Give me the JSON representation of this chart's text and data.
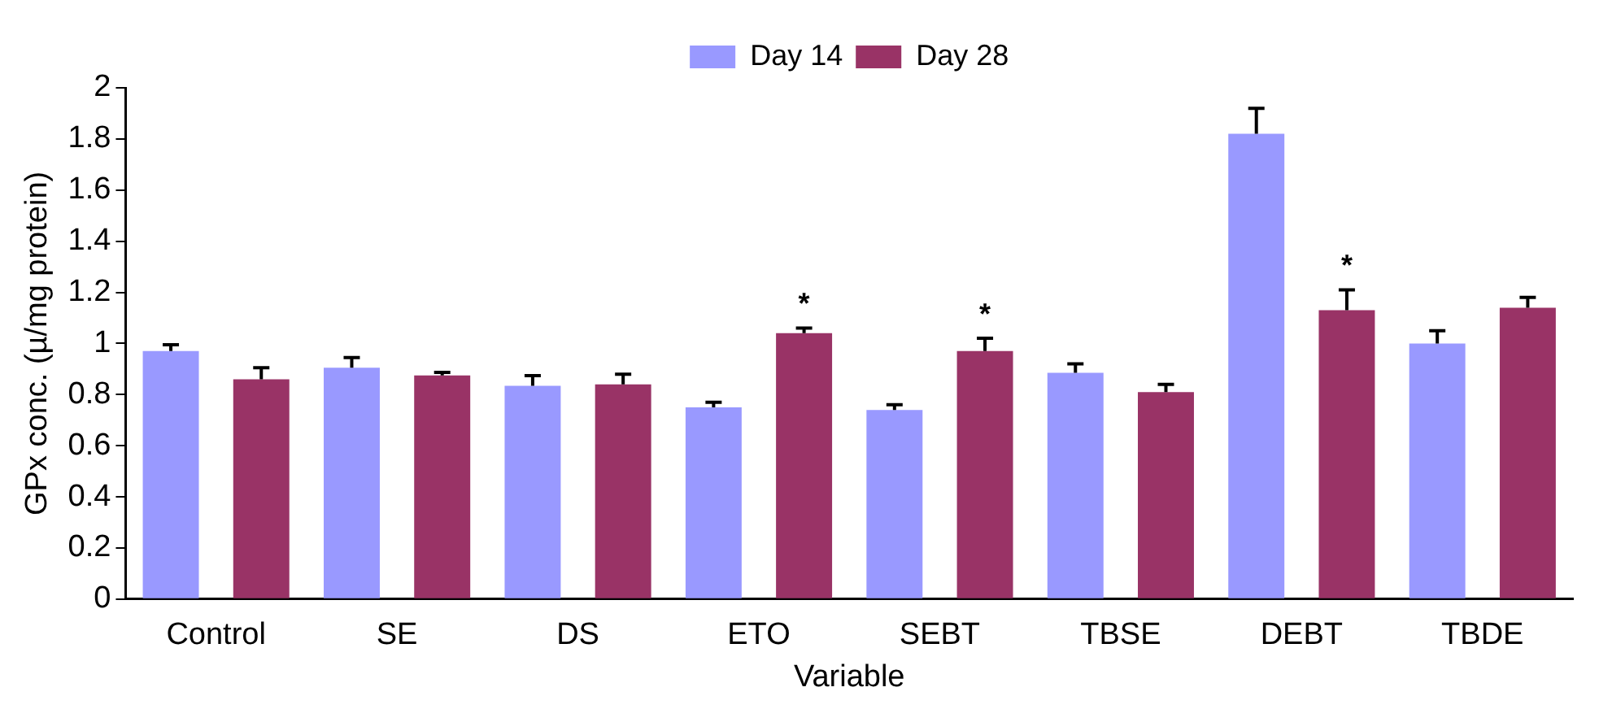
{
  "chart_data": {
    "type": "bar",
    "xlabel": "Variable",
    "ylabel": "GPx conc. (µ/mg protein)",
    "categories": [
      "Control",
      "SE",
      "DS",
      "ETO",
      "SEBT",
      "TBSE",
      "DEBT",
      "TBDE"
    ],
    "series": [
      {
        "name": "Day 14",
        "color": "#9999ff",
        "values": [
          0.97,
          0.905,
          0.834,
          0.75,
          0.74,
          0.885,
          1.82,
          1.0
        ],
        "errors": [
          0.025,
          0.04,
          0.04,
          0.02,
          0.02,
          0.035,
          0.1,
          0.05
        ]
      },
      {
        "name": "Day 28",
        "color": "#993366",
        "values": [
          0.86,
          0.875,
          0.84,
          1.04,
          0.97,
          0.81,
          1.13,
          1.14
        ],
        "errors": [
          0.045,
          0.012,
          0.04,
          0.02,
          0.05,
          0.03,
          0.08,
          0.04
        ],
        "value_labels": [
          null,
          null,
          null,
          "*",
          "*",
          null,
          "*",
          null
        ]
      }
    ],
    "ylim": [
      0,
      2
    ],
    "yticks": [
      0,
      0.2,
      0.4,
      0.6,
      0.8,
      1,
      1.2,
      1.4,
      1.6,
      1.8,
      2
    ],
    "grid": false,
    "legend": "top"
  }
}
